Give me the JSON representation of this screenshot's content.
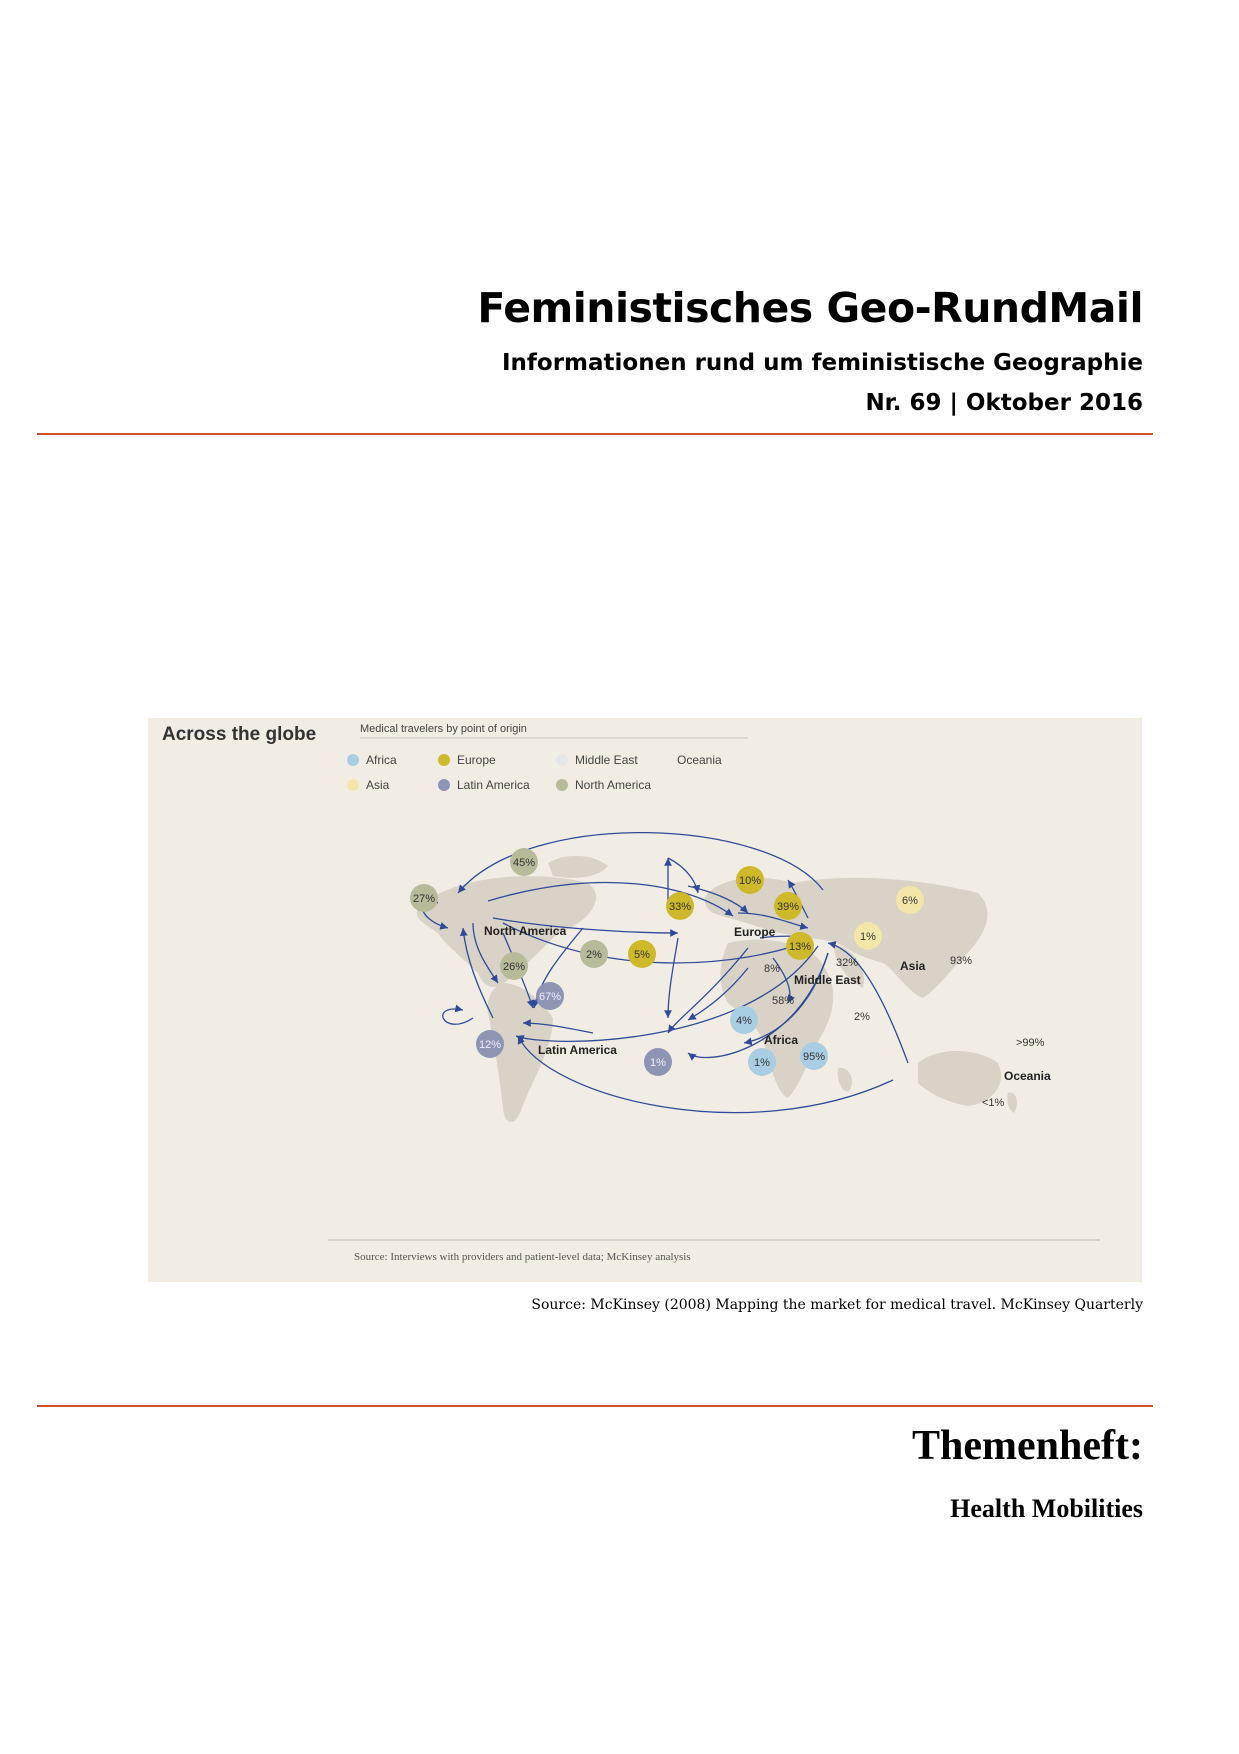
{
  "header": {
    "title": "Feministisches Geo-RundMail",
    "subtitle": "Informationen rund um feministische Geographie",
    "issue": "Nr. 69 | Oktober 2016"
  },
  "figure": {
    "heading": "Across the globe",
    "legend_title": "Medical travelers by point of origin",
    "legend": [
      {
        "label": "Africa",
        "color": "#a9cde3"
      },
      {
        "label": "Europe",
        "color": "#cdb92a"
      },
      {
        "label": "Middle East",
        "color": "#e4e6ea"
      },
      {
        "label": "Oceania",
        "color": "#f2ede4"
      },
      {
        "label": "Asia",
        "color": "#f3e6a9"
      },
      {
        "label": "Latin America",
        "color": "#8e94b3"
      },
      {
        "label": "North America",
        "color": "#b8bb99"
      }
    ],
    "regions": {
      "north_america": "North America",
      "latin_america": "Latin America",
      "europe": "Europe",
      "middle_east": "Middle East",
      "africa": "Africa",
      "asia": "Asia",
      "oceania": "Oceania"
    },
    "bubbles": [
      {
        "label": "27%",
        "color": "#b8bb99"
      },
      {
        "label": "45%",
        "color": "#b8bb99"
      },
      {
        "label": "26%",
        "color": "#b8bb99"
      },
      {
        "label": "67%",
        "color": "#8e94b3"
      },
      {
        "label": "12%",
        "color": "#8e94b3"
      },
      {
        "label": "2%",
        "color": "#b8bb99"
      },
      {
        "label": "5%",
        "color": "#cdb92a"
      },
      {
        "label": "33%",
        "color": "#cdb92a"
      },
      {
        "label": "10%",
        "color": "#cdb92a"
      },
      {
        "label": "39%",
        "color": "#cdb92a"
      },
      {
        "label": "13%",
        "color": "#cdb92a"
      },
      {
        "label": "1%",
        "color": "#f3e6a9"
      },
      {
        "label": "6%",
        "color": "#f3e6a9"
      },
      {
        "label": "4%",
        "color": "#a9cde3"
      },
      {
        "label": "1%",
        "color": "#a9cde3"
      },
      {
        "label": "95%",
        "color": "#a9cde3"
      },
      {
        "label": "1%",
        "color": "#8e94b3"
      }
    ],
    "plain_labels": [
      "8%",
      "32%",
      "58%",
      "2%",
      "93%",
      ">99%",
      "<1%"
    ],
    "source": "Source: Interviews with providers and patient-level data; McKinsey analysis",
    "colors": {
      "arrow": "#2f4a99",
      "land": "#d9d3c7",
      "background": "#f2ede4"
    }
  },
  "caption": "Source: McKinsey (2008) Mapping the market for medical travel. McKinsey Quarterly",
  "theme": {
    "label": "Themenheft:",
    "title": "Health Mobilities"
  }
}
